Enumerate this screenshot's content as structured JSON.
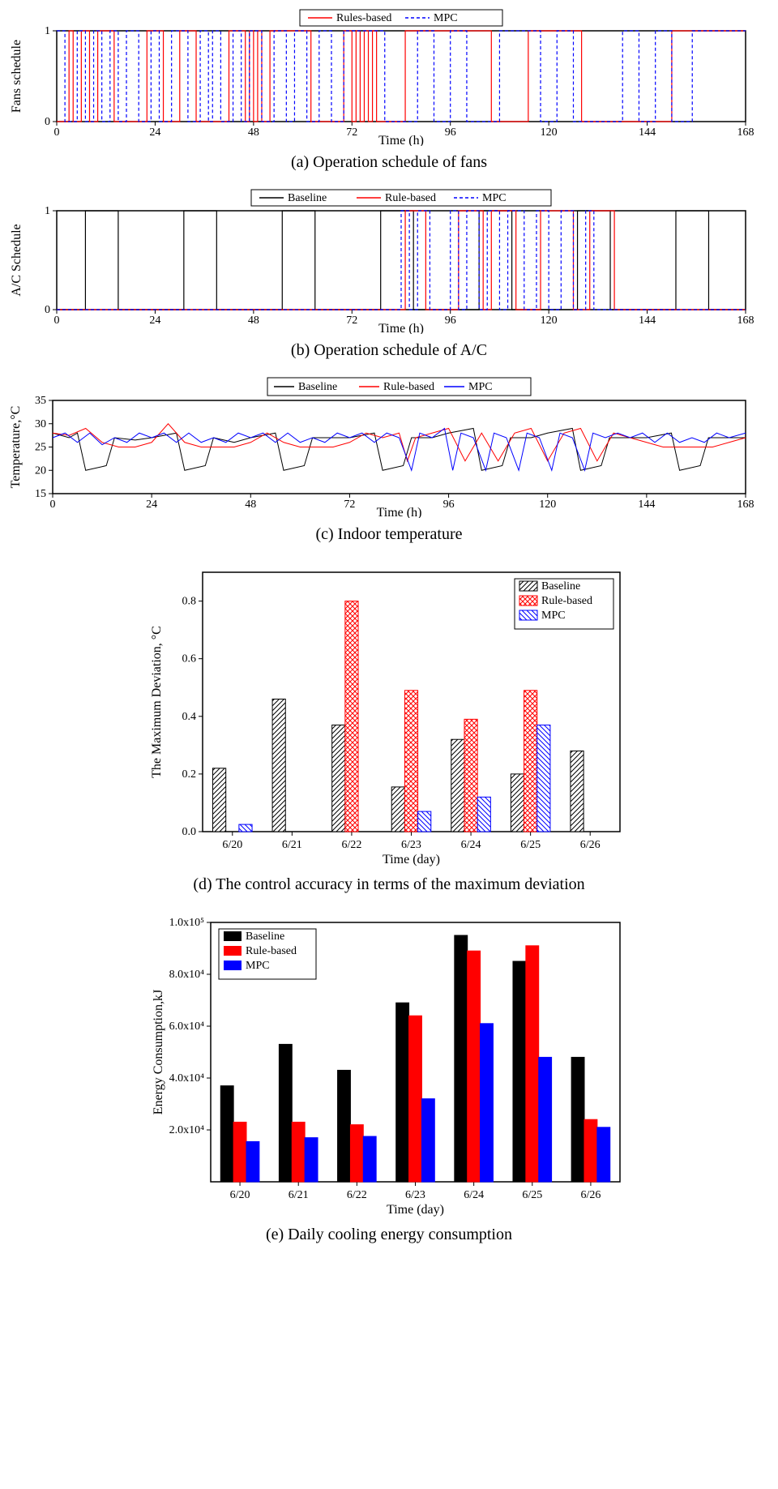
{
  "panel_a": {
    "caption": "(a) Operation schedule of fans",
    "xlabel": "Time (h)",
    "ylabel": "Fans schedule",
    "xlim": [
      0,
      168
    ],
    "ylim": [
      0,
      1
    ],
    "xticks": [
      0,
      24,
      48,
      72,
      96,
      120,
      144,
      168
    ],
    "yticks": [
      0,
      1
    ],
    "legend": [
      {
        "label": "Rules-based",
        "color": "#ff0000",
        "dash": "none"
      },
      {
        "label": "MPC",
        "color": "#0000ff",
        "dash": "4,3"
      }
    ],
    "series": {
      "rules": {
        "color": "#ff0000",
        "dash": "none",
        "width": 1.2,
        "transitions": [
          0,
          3,
          1,
          4,
          0,
          6,
          1,
          8,
          0,
          10,
          1,
          14,
          0,
          22,
          1,
          26,
          0,
          30,
          1,
          34,
          0,
          42,
          1,
          46,
          0,
          47,
          1,
          48,
          0,
          49,
          1,
          50,
          0,
          52,
          1,
          62,
          0,
          70,
          1,
          72,
          0,
          73,
          1,
          74,
          0,
          75,
          1,
          76,
          0,
          77,
          1,
          78,
          0,
          85,
          1,
          106,
          0,
          115,
          1,
          128,
          0,
          150,
          1,
          168
        ]
      },
      "mpc": {
        "color": "#0000ff",
        "dash": "4,3",
        "width": 1.2,
        "transitions": [
          1,
          2,
          0,
          5,
          1,
          7,
          0,
          9,
          1,
          11,
          0,
          13,
          1,
          15,
          0,
          17,
          1,
          20,
          0,
          23,
          1,
          25,
          0,
          28,
          1,
          32,
          0,
          35,
          1,
          37,
          0,
          38,
          1,
          40,
          0,
          43,
          1,
          45,
          0,
          47,
          1,
          50,
          0,
          53,
          1,
          56,
          0,
          58,
          1,
          61,
          0,
          64,
          1,
          67,
          0,
          70,
          1,
          80,
          0,
          88,
          1,
          92,
          0,
          96,
          1,
          100,
          0,
          108,
          1,
          118,
          0,
          122,
          1,
          126,
          0,
          138,
          1,
          142,
          0,
          146,
          1,
          150,
          0,
          155,
          1,
          168
        ]
      }
    }
  },
  "panel_b": {
    "caption": "(b) Operation schedule of A/C",
    "xlabel": "Time (h)",
    "ylabel": "A/C Schedule",
    "xlim": [
      0,
      168
    ],
    "ylim": [
      0,
      1
    ],
    "xticks": [
      0,
      24,
      48,
      72,
      96,
      120,
      144,
      168
    ],
    "yticks": [
      0,
      1
    ],
    "legend": [
      {
        "label": "Baseline",
        "color": "#000000",
        "dash": "none"
      },
      {
        "label": "Rule-based",
        "color": "#ff0000",
        "dash": "none"
      },
      {
        "label": "MPC",
        "color": "#0000ff",
        "dash": "4,3"
      }
    ],
    "series": {
      "baseline": {
        "color": "#000000",
        "dash": "none",
        "width": 1.2,
        "transitions": [
          0,
          7,
          1,
          15,
          0,
          31,
          1,
          39,
          0,
          55,
          1,
          63,
          0,
          79,
          1,
          87,
          0,
          103,
          1,
          111,
          0,
          127,
          1,
          135,
          0,
          151,
          1,
          159,
          0,
          168
        ]
      },
      "rule": {
        "color": "#ff0000",
        "dash": "none",
        "width": 1.2,
        "transitions": [
          0,
          85,
          1,
          90,
          0,
          98,
          1,
          104,
          0,
          106,
          1,
          112,
          0,
          118,
          1,
          126,
          0,
          130,
          1,
          136,
          0,
          168
        ]
      },
      "mpc": {
        "color": "#0000ff",
        "dash": "4,3",
        "width": 1.2,
        "transitions": [
          0,
          84,
          1,
          86,
          0,
          88,
          1,
          91,
          0,
          96,
          1,
          98,
          0,
          100,
          1,
          103,
          0,
          105,
          1,
          108,
          0,
          110,
          1,
          114,
          0,
          117,
          1,
          120,
          0,
          123,
          1,
          126,
          0,
          129,
          1,
          131,
          0,
          168
        ]
      }
    }
  },
  "panel_c": {
    "caption": "(c) Indoor temperature",
    "xlabel": "Time (h)",
    "ylabel": "Temperature,°C",
    "xlim": [
      0,
      168
    ],
    "ylim": [
      15,
      35
    ],
    "xticks": [
      0,
      24,
      48,
      72,
      96,
      120,
      144,
      168
    ],
    "yticks": [
      15,
      20,
      25,
      30,
      35
    ],
    "legend": [
      {
        "label": "Baseline",
        "color": "#000000",
        "dash": "none"
      },
      {
        "label": "Rule-based",
        "color": "#ff0000",
        "dash": "none"
      },
      {
        "label": "MPC",
        "color": "#0000ff",
        "dash": "none"
      }
    ],
    "series": {
      "baseline": {
        "color": "#000000",
        "width": 1,
        "points": [
          [
            0,
            28
          ],
          [
            4,
            27
          ],
          [
            6,
            28
          ],
          [
            8,
            20
          ],
          [
            13,
            21
          ],
          [
            15,
            27
          ],
          [
            20,
            26.5
          ],
          [
            24,
            27
          ],
          [
            30,
            28
          ],
          [
            32,
            20
          ],
          [
            37,
            21
          ],
          [
            39,
            27
          ],
          [
            44,
            26
          ],
          [
            48,
            27
          ],
          [
            54,
            28
          ],
          [
            56,
            20
          ],
          [
            61,
            21
          ],
          [
            63,
            27
          ],
          [
            68,
            27
          ],
          [
            72,
            27
          ],
          [
            78,
            28
          ],
          [
            80,
            20
          ],
          [
            85,
            21
          ],
          [
            87,
            27
          ],
          [
            92,
            27
          ],
          [
            96,
            28
          ],
          [
            102,
            29
          ],
          [
            104,
            20
          ],
          [
            109,
            21
          ],
          [
            111,
            27
          ],
          [
            116,
            27
          ],
          [
            120,
            28
          ],
          [
            126,
            29
          ],
          [
            128,
            20
          ],
          [
            133,
            21
          ],
          [
            135,
            27
          ],
          [
            140,
            27
          ],
          [
            144,
            27
          ],
          [
            150,
            28
          ],
          [
            152,
            20
          ],
          [
            157,
            21
          ],
          [
            159,
            27
          ],
          [
            164,
            27
          ],
          [
            168,
            27
          ]
        ]
      },
      "rule": {
        "color": "#ff0000",
        "width": 1,
        "points": [
          [
            0,
            28
          ],
          [
            4,
            27.5
          ],
          [
            8,
            29
          ],
          [
            12,
            26
          ],
          [
            16,
            25
          ],
          [
            20,
            25
          ],
          [
            24,
            26
          ],
          [
            28,
            30
          ],
          [
            32,
            26
          ],
          [
            36,
            25
          ],
          [
            40,
            25
          ],
          [
            44,
            25
          ],
          [
            48,
            26
          ],
          [
            52,
            28
          ],
          [
            56,
            26
          ],
          [
            60,
            25
          ],
          [
            64,
            25
          ],
          [
            68,
            25
          ],
          [
            72,
            26
          ],
          [
            76,
            28
          ],
          [
            80,
            27
          ],
          [
            84,
            28
          ],
          [
            86,
            22
          ],
          [
            88,
            27
          ],
          [
            92,
            28
          ],
          [
            96,
            29
          ],
          [
            100,
            22
          ],
          [
            104,
            28
          ],
          [
            108,
            22
          ],
          [
            112,
            28
          ],
          [
            116,
            29
          ],
          [
            120,
            22
          ],
          [
            124,
            28
          ],
          [
            128,
            29
          ],
          [
            132,
            22
          ],
          [
            136,
            28
          ],
          [
            140,
            27
          ],
          [
            144,
            26
          ],
          [
            148,
            25
          ],
          [
            152,
            25
          ],
          [
            156,
            25
          ],
          [
            160,
            25
          ],
          [
            164,
            26
          ],
          [
            168,
            27
          ]
        ]
      },
      "mpc": {
        "color": "#0000ff",
        "width": 1,
        "points": [
          [
            0,
            27
          ],
          [
            3,
            28
          ],
          [
            6,
            26
          ],
          [
            9,
            28
          ],
          [
            12,
            25.5
          ],
          [
            15,
            27
          ],
          [
            18,
            26
          ],
          [
            21,
            28
          ],
          [
            24,
            27
          ],
          [
            27,
            28
          ],
          [
            30,
            26
          ],
          [
            33,
            28
          ],
          [
            36,
            26
          ],
          [
            39,
            27
          ],
          [
            42,
            26
          ],
          [
            45,
            28
          ],
          [
            48,
            27
          ],
          [
            51,
            28
          ],
          [
            54,
            26
          ],
          [
            57,
            28
          ],
          [
            60,
            26
          ],
          [
            63,
            27
          ],
          [
            66,
            26
          ],
          [
            69,
            28
          ],
          [
            72,
            27
          ],
          [
            75,
            28
          ],
          [
            78,
            26
          ],
          [
            81,
            28
          ],
          [
            84,
            27
          ],
          [
            87,
            20
          ],
          [
            89,
            28
          ],
          [
            92,
            27
          ],
          [
            95,
            29
          ],
          [
            97,
            20
          ],
          [
            99,
            28
          ],
          [
            102,
            27
          ],
          [
            105,
            20
          ],
          [
            107,
            28
          ],
          [
            110,
            27
          ],
          [
            113,
            20
          ],
          [
            115,
            28
          ],
          [
            118,
            27
          ],
          [
            121,
            20
          ],
          [
            123,
            28
          ],
          [
            126,
            27
          ],
          [
            129,
            20
          ],
          [
            131,
            28
          ],
          [
            134,
            27
          ],
          [
            137,
            28
          ],
          [
            140,
            27
          ],
          [
            143,
            28
          ],
          [
            146,
            26
          ],
          [
            149,
            28
          ],
          [
            152,
            26
          ],
          [
            155,
            27
          ],
          [
            158,
            26
          ],
          [
            161,
            28
          ],
          [
            164,
            27
          ],
          [
            168,
            28
          ]
        ]
      }
    }
  },
  "panel_d": {
    "caption": "(d) The control accuracy in terms of the maximum deviation",
    "xlabel": "Time (day)",
    "ylabel": "The Maximum Deviation, °C",
    "categories": [
      "6/20",
      "6/21",
      "6/22",
      "6/23",
      "6/24",
      "6/25",
      "6/26"
    ],
    "ylim": [
      0,
      0.9
    ],
    "yticks": [
      0.0,
      0.2,
      0.4,
      0.6,
      0.8
    ],
    "legend": [
      {
        "label": "Baseline",
        "pattern": "diag-black"
      },
      {
        "label": "Rule-based",
        "pattern": "cross-red"
      },
      {
        "label": "MPC",
        "pattern": "diag-blue"
      }
    ],
    "bar_width": 0.22,
    "series": {
      "baseline": [
        0.22,
        0.46,
        0.37,
        0.155,
        0.32,
        0.2,
        0.28
      ],
      "rule": [
        null,
        null,
        0.8,
        0.49,
        0.39,
        0.49,
        null
      ],
      "mpc": [
        0.025,
        null,
        null,
        0.07,
        0.12,
        0.37,
        null
      ]
    }
  },
  "panel_e": {
    "caption": "(e) Daily cooling energy consumption",
    "xlabel": "Time (day)",
    "ylabel": "Energy Consumption,kJ",
    "categories": [
      "6/20",
      "6/21",
      "6/22",
      "6/23",
      "6/24",
      "6/25",
      "6/26"
    ],
    "ylim": [
      0,
      100000
    ],
    "yticks": [
      20000,
      40000,
      60000,
      80000,
      100000
    ],
    "ytick_labels": [
      "2.0x10⁴",
      "4.0x10⁴",
      "6.0x10⁴",
      "8.0x10⁴",
      "1.0x10⁵"
    ],
    "legend": [
      {
        "label": "Baseline",
        "color": "#000000"
      },
      {
        "label": "Rule-based",
        "color": "#ff0000"
      },
      {
        "label": "MPC",
        "color": "#0000ff"
      }
    ],
    "bar_width": 0.22,
    "series": {
      "baseline": [
        37000,
        53000,
        43000,
        69000,
        95000,
        85000,
        48000
      ],
      "rule": [
        23000,
        23000,
        22000,
        64000,
        89000,
        91000,
        24000
      ],
      "mpc": [
        15500,
        17000,
        17500,
        32000,
        61000,
        48000,
        21000
      ]
    }
  },
  "colors": {
    "axis": "#000000",
    "grid": "#cccccc"
  }
}
